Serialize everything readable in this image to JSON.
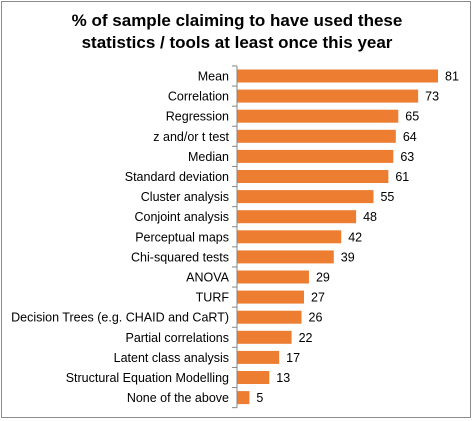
{
  "chart_data": {
    "type": "bar",
    "orientation": "horizontal",
    "title_lines": [
      "% of sample claiming to have used these",
      "statistics / tools at least once this year"
    ],
    "categories": [
      "Mean",
      "Correlation",
      "Regression",
      "z and/or t test",
      "Median",
      "Standard deviation",
      "Cluster analysis",
      "Conjoint analysis",
      "Perceptual maps",
      "Chi-squared tests",
      "ANOVA",
      "TURF",
      "Decision Trees (e.g. CHAID and CaRT)",
      "Partial correlations",
      "Latent class analysis",
      "Structural Equation Modelling",
      "None of the above"
    ],
    "values": [
      81,
      73,
      65,
      64,
      63,
      61,
      55,
      48,
      42,
      39,
      29,
      27,
      26,
      22,
      17,
      13,
      5
    ],
    "xlim": [
      0,
      81
    ],
    "xlabel": "",
    "ylabel": "",
    "grid": false,
    "legend": "none",
    "colors": {
      "bar": "#ed7d31",
      "axis": "#868686",
      "frame": "#8c8c8c"
    }
  }
}
